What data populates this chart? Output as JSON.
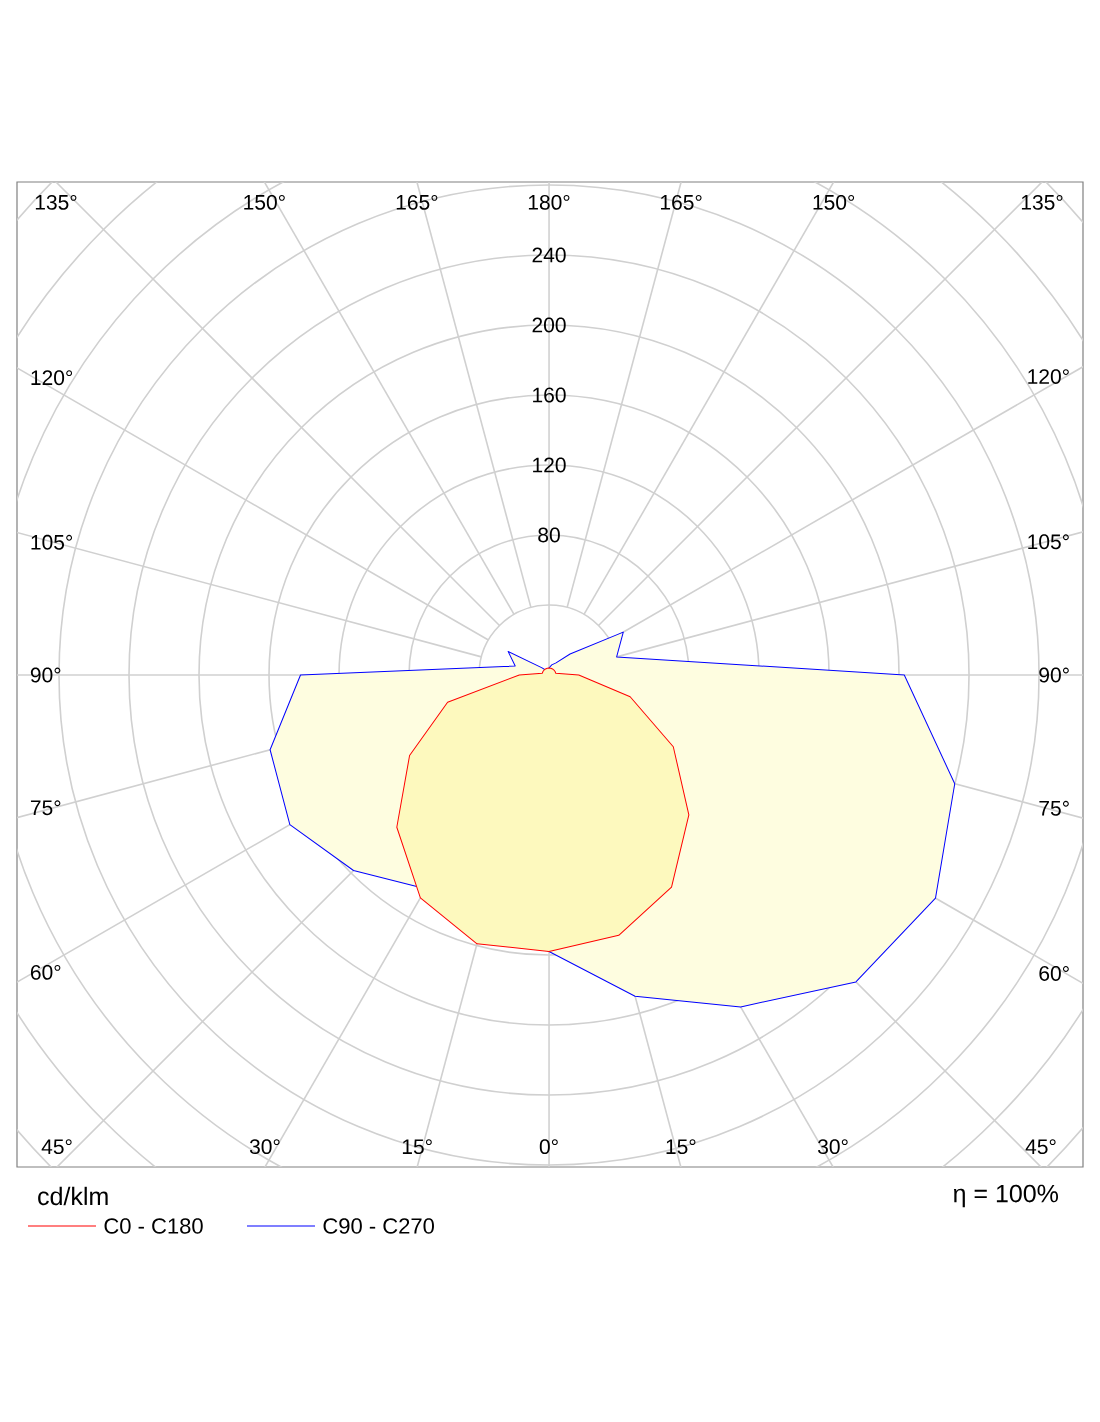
{
  "chart_data": {
    "type": "radar",
    "ylabel": "cd/klm",
    "annotations": [
      "η = 100%"
    ],
    "categories": [
      "180°",
      "165°",
      "150°",
      "135°",
      "120°",
      "105°",
      "90°",
      "75°",
      "60°",
      "45°",
      "30°",
      "15°",
      "0°",
      "15°",
      "30°",
      "45°",
      "60°",
      "75°",
      "90°",
      "105°",
      "120°",
      "135°",
      "150°",
      "165°"
    ],
    "ylim": [
      0,
      400
    ],
    "yticks": [
      80,
      120,
      160,
      200,
      240
    ],
    "grid": true,
    "legend": "bottom left",
    "series": [
      {
        "name": "C90 - C270",
        "color": "#0000ff",
        "values": [
          4,
          6,
          8,
          17,
          49,
          40,
          203,
          240,
          255,
          248,
          219,
          190,
          158,
          145,
          141,
          158,
          171,
          165,
          142,
          20,
          27,
          6,
          3,
          3
        ]
      },
      {
        "name": "C0 - C180",
        "color": "#ff0000",
        "values": [
          4,
          4,
          4,
          4,
          4,
          4,
          17,
          48,
          82,
          113,
          140,
          154,
          158,
          159,
          147,
          123,
          92,
          60,
          17,
          4,
          4,
          4,
          4,
          4
        ]
      }
    ]
  }
}
